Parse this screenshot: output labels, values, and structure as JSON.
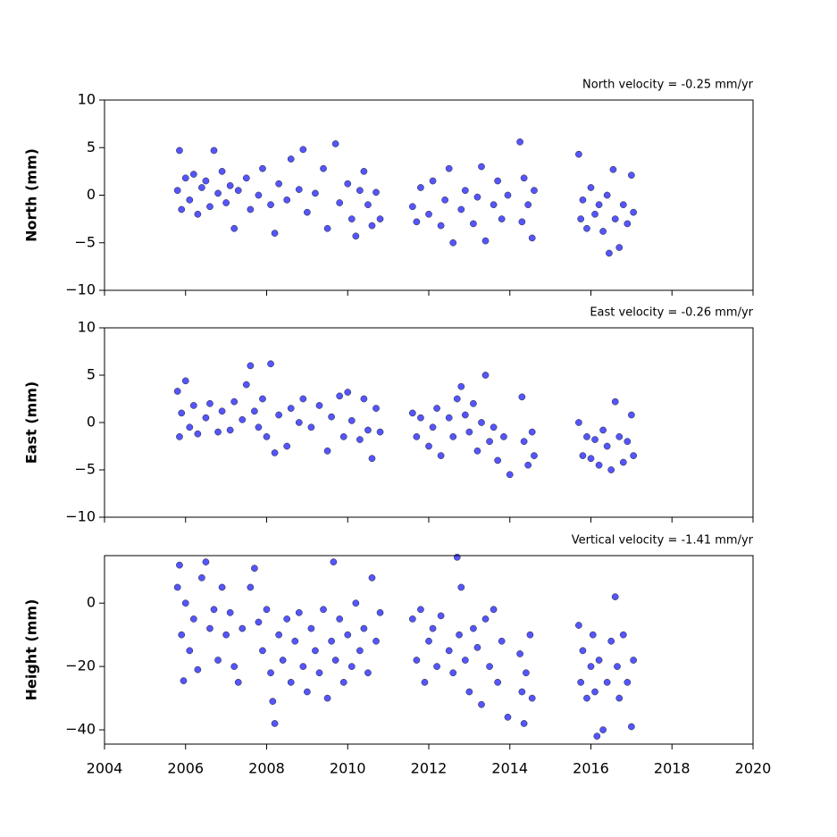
{
  "chart_data": [
    {
      "type": "scatter",
      "title": "North velocity = -0.25 mm/yr",
      "ylabel": "North (mm)",
      "color": "#5555ff",
      "xlim": [
        2004,
        2020
      ],
      "xticks": [
        2004,
        2006,
        2008,
        2010,
        2012,
        2014,
        2016,
        2018,
        2020
      ],
      "ylim": [
        -10,
        10
      ],
      "yticks": [
        {
          "value": -10,
          "label": "−10"
        },
        {
          "value": -5,
          "label": "−5"
        },
        0,
        5,
        10
      ],
      "x": [
        2005.8,
        2005.85,
        2005.9,
        2006.0,
        2006.1,
        2006.2,
        2006.3,
        2006.4,
        2006.5,
        2006.6,
        2006.7,
        2006.8,
        2006.9,
        2007.0,
        2007.1,
        2007.2,
        2007.3,
        2007.5,
        2007.6,
        2007.8,
        2007.9,
        2008.1,
        2008.2,
        2008.3,
        2008.5,
        2008.6,
        2008.8,
        2008.9,
        2009.0,
        2009.2,
        2009.4,
        2009.5,
        2009.7,
        2009.8,
        2010.0,
        2010.1,
        2010.2,
        2010.3,
        2010.4,
        2010.5,
        2010.6,
        2010.7,
        2010.8,
        2011.6,
        2011.7,
        2011.8,
        2012.0,
        2012.1,
        2012.3,
        2012.4,
        2012.5,
        2012.6,
        2012.8,
        2012.9,
        2013.1,
        2013.2,
        2013.3,
        2013.4,
        2013.6,
        2013.7,
        2013.8,
        2013.95,
        2014.25,
        2014.3,
        2014.35,
        2014.45,
        2014.55,
        2014.6,
        2015.7,
        2015.75,
        2015.8,
        2015.9,
        2016.0,
        2016.1,
        2016.2,
        2016.3,
        2016.4,
        2016.45,
        2016.55,
        2016.6,
        2016.7,
        2016.8,
        2016.9,
        2017.0,
        2017.05
      ],
      "values": [
        0.5,
        4.7,
        -1.5,
        1.8,
        -0.5,
        2.2,
        -2.0,
        0.8,
        1.5,
        -1.2,
        4.7,
        0.2,
        2.5,
        -0.8,
        1.0,
        -3.5,
        0.5,
        1.8,
        -1.5,
        0.0,
        2.8,
        -1.0,
        -4.0,
        1.2,
        -0.5,
        3.8,
        0.6,
        4.8,
        -1.8,
        0.2,
        2.8,
        -3.5,
        5.4,
        -0.8,
        1.2,
        -2.5,
        -4.3,
        0.5,
        2.5,
        -1.0,
        -3.2,
        0.3,
        -2.5,
        -1.2,
        -2.8,
        0.8,
        -2.0,
        1.5,
        -3.2,
        -0.5,
        2.8,
        -5.0,
        -1.5,
        0.5,
        -3.0,
        -0.2,
        3.0,
        -4.8,
        -1.0,
        1.5,
        -2.5,
        0.0,
        5.6,
        -2.8,
        1.8,
        -1.0,
        -4.5,
        0.5,
        4.3,
        -2.5,
        -0.5,
        -3.5,
        0.8,
        -2.0,
        -1.0,
        -3.8,
        0.0,
        -6.1,
        2.7,
        -2.5,
        -5.5,
        -1.0,
        -3.0,
        2.1,
        -1.8
      ]
    },
    {
      "type": "scatter",
      "title": "East velocity = -0.26 mm/yr",
      "ylabel": "East (mm)",
      "color": "#5555ff",
      "xlim": [
        2004,
        2020
      ],
      "xticks": [
        2004,
        2006,
        2008,
        2010,
        2012,
        2014,
        2016,
        2018,
        2020
      ],
      "ylim": [
        -10,
        10
      ],
      "yticks": [
        {
          "value": -10,
          "label": "−10"
        },
        {
          "value": -5,
          "label": "−5"
        },
        0,
        5,
        10
      ],
      "x": [
        2005.8,
        2005.85,
        2005.9,
        2006.0,
        2006.1,
        2006.2,
        2006.3,
        2006.5,
        2006.6,
        2006.8,
        2006.9,
        2007.1,
        2007.2,
        2007.4,
        2007.5,
        2007.6,
        2007.7,
        2007.8,
        2007.9,
        2008.0,
        2008.1,
        2008.2,
        2008.3,
        2008.5,
        2008.6,
        2008.8,
        2008.9,
        2009.1,
        2009.3,
        2009.5,
        2009.6,
        2009.8,
        2009.9,
        2010.0,
        2010.1,
        2010.3,
        2010.4,
        2010.5,
        2010.6,
        2010.7,
        2010.8,
        2011.6,
        2011.7,
        2011.8,
        2012.0,
        2012.1,
        2012.2,
        2012.3,
        2012.5,
        2012.6,
        2012.7,
        2012.8,
        2012.9,
        2013.0,
        2013.1,
        2013.2,
        2013.3,
        2013.4,
        2013.5,
        2013.6,
        2013.7,
        2013.85,
        2014.0,
        2014.3,
        2014.35,
        2014.45,
        2014.55,
        2014.6,
        2015.7,
        2015.8,
        2015.9,
        2016.0,
        2016.1,
        2016.2,
        2016.3,
        2016.4,
        2016.5,
        2016.6,
        2016.7,
        2016.8,
        2016.9,
        2017.0,
        2017.05
      ],
      "values": [
        3.3,
        -1.5,
        1.0,
        4.4,
        -0.5,
        1.8,
        -1.2,
        0.5,
        2.0,
        -1.0,
        1.2,
        -0.8,
        2.2,
        0.3,
        4.0,
        6.0,
        1.2,
        -0.5,
        2.5,
        -1.5,
        6.2,
        -3.2,
        0.8,
        -2.5,
        1.5,
        0.0,
        2.5,
        -0.5,
        1.8,
        -3.0,
        0.6,
        2.8,
        -1.5,
        3.2,
        0.2,
        -1.8,
        2.5,
        -0.8,
        -3.8,
        1.5,
        -1.0,
        1.0,
        -1.5,
        0.5,
        -2.5,
        -0.5,
        1.5,
        -3.5,
        0.5,
        -1.5,
        2.5,
        3.8,
        0.8,
        -1.0,
        2.0,
        -3.0,
        0.0,
        5.0,
        -2.0,
        -0.5,
        -4.0,
        -1.5,
        -5.5,
        2.7,
        -2.0,
        -4.5,
        -1.0,
        -3.5,
        0.0,
        -3.5,
        -1.5,
        -3.8,
        -1.8,
        -4.5,
        -0.8,
        -2.5,
        -5.0,
        2.2,
        -1.5,
        -4.2,
        -2.0,
        0.8,
        -3.5
      ]
    },
    {
      "type": "scatter",
      "title": "Vertical velocity = -1.41 mm/yr",
      "ylabel": "Height (mm)",
      "color": "#5555ff",
      "xlim": [
        2004,
        2020
      ],
      "xticks": [
        2004,
        2006,
        2008,
        2010,
        2012,
        2014,
        2016,
        2018,
        2020
      ],
      "ylim": [
        -44.5,
        15
      ],
      "yticks": [
        {
          "value": -40,
          "label": "−40"
        },
        {
          "value": -20,
          "label": "−20"
        },
        0
      ],
      "x": [
        2005.8,
        2005.85,
        2005.9,
        2005.95,
        2006.0,
        2006.1,
        2006.2,
        2006.3,
        2006.4,
        2006.5,
        2006.6,
        2006.7,
        2006.8,
        2006.9,
        2007.0,
        2007.1,
        2007.2,
        2007.3,
        2007.4,
        2007.6,
        2007.7,
        2007.8,
        2007.9,
        2008.0,
        2008.1,
        2008.15,
        2008.2,
        2008.3,
        2008.4,
        2008.5,
        2008.6,
        2008.7,
        2008.8,
        2008.9,
        2009.0,
        2009.1,
        2009.2,
        2009.3,
        2009.4,
        2009.5,
        2009.6,
        2009.65,
        2009.7,
        2009.8,
        2009.9,
        2010.0,
        2010.1,
        2010.2,
        2010.3,
        2010.4,
        2010.5,
        2010.6,
        2010.7,
        2010.8,
        2011.6,
        2011.7,
        2011.8,
        2011.9,
        2012.0,
        2012.1,
        2012.2,
        2012.3,
        2012.5,
        2012.6,
        2012.7,
        2012.75,
        2012.8,
        2012.9,
        2013.0,
        2013.1,
        2013.2,
        2013.3,
        2013.4,
        2013.5,
        2013.6,
        2013.7,
        2013.8,
        2013.95,
        2014.25,
        2014.3,
        2014.35,
        2014.4,
        2014.5,
        2014.55,
        2015.7,
        2015.75,
        2015.8,
        2015.9,
        2016.0,
        2016.05,
        2016.1,
        2016.15,
        2016.2,
        2016.3,
        2016.4,
        2016.5,
        2016.6,
        2016.65,
        2016.7,
        2016.8,
        2016.9,
        2017.0,
        2017.05
      ],
      "values": [
        5,
        12,
        -10,
        -24.5,
        0,
        -15,
        -5,
        -21,
        8,
        13,
        -8,
        -2,
        -18,
        5,
        -10,
        -3,
        -20,
        -25,
        -8,
        5,
        11,
        -6,
        -15,
        -2,
        -22,
        -31,
        -38,
        -10,
        -18,
        -5,
        -25,
        -12,
        -3,
        -20,
        -28,
        -8,
        -15,
        -22,
        -2,
        -30,
        -12,
        13,
        -18,
        -5,
        -25,
        -10,
        -20,
        0,
        -15,
        -8,
        -22,
        8,
        -12,
        -3,
        -5,
        -18,
        -2,
        -25,
        -12,
        -8,
        -20,
        -4,
        -15,
        -22,
        14.5,
        -10,
        5,
        -18,
        -28,
        -8,
        -14,
        -32,
        -5,
        -20,
        -2,
        -25,
        -12,
        -36,
        -16,
        -28,
        -38,
        -22,
        -10,
        -30,
        -7,
        -25,
        -15,
        -30,
        -20,
        -10,
        -28,
        -42,
        -18,
        -40,
        -25,
        -12,
        2,
        -20,
        -30,
        -10,
        -25,
        -39,
        -18
      ]
    }
  ]
}
